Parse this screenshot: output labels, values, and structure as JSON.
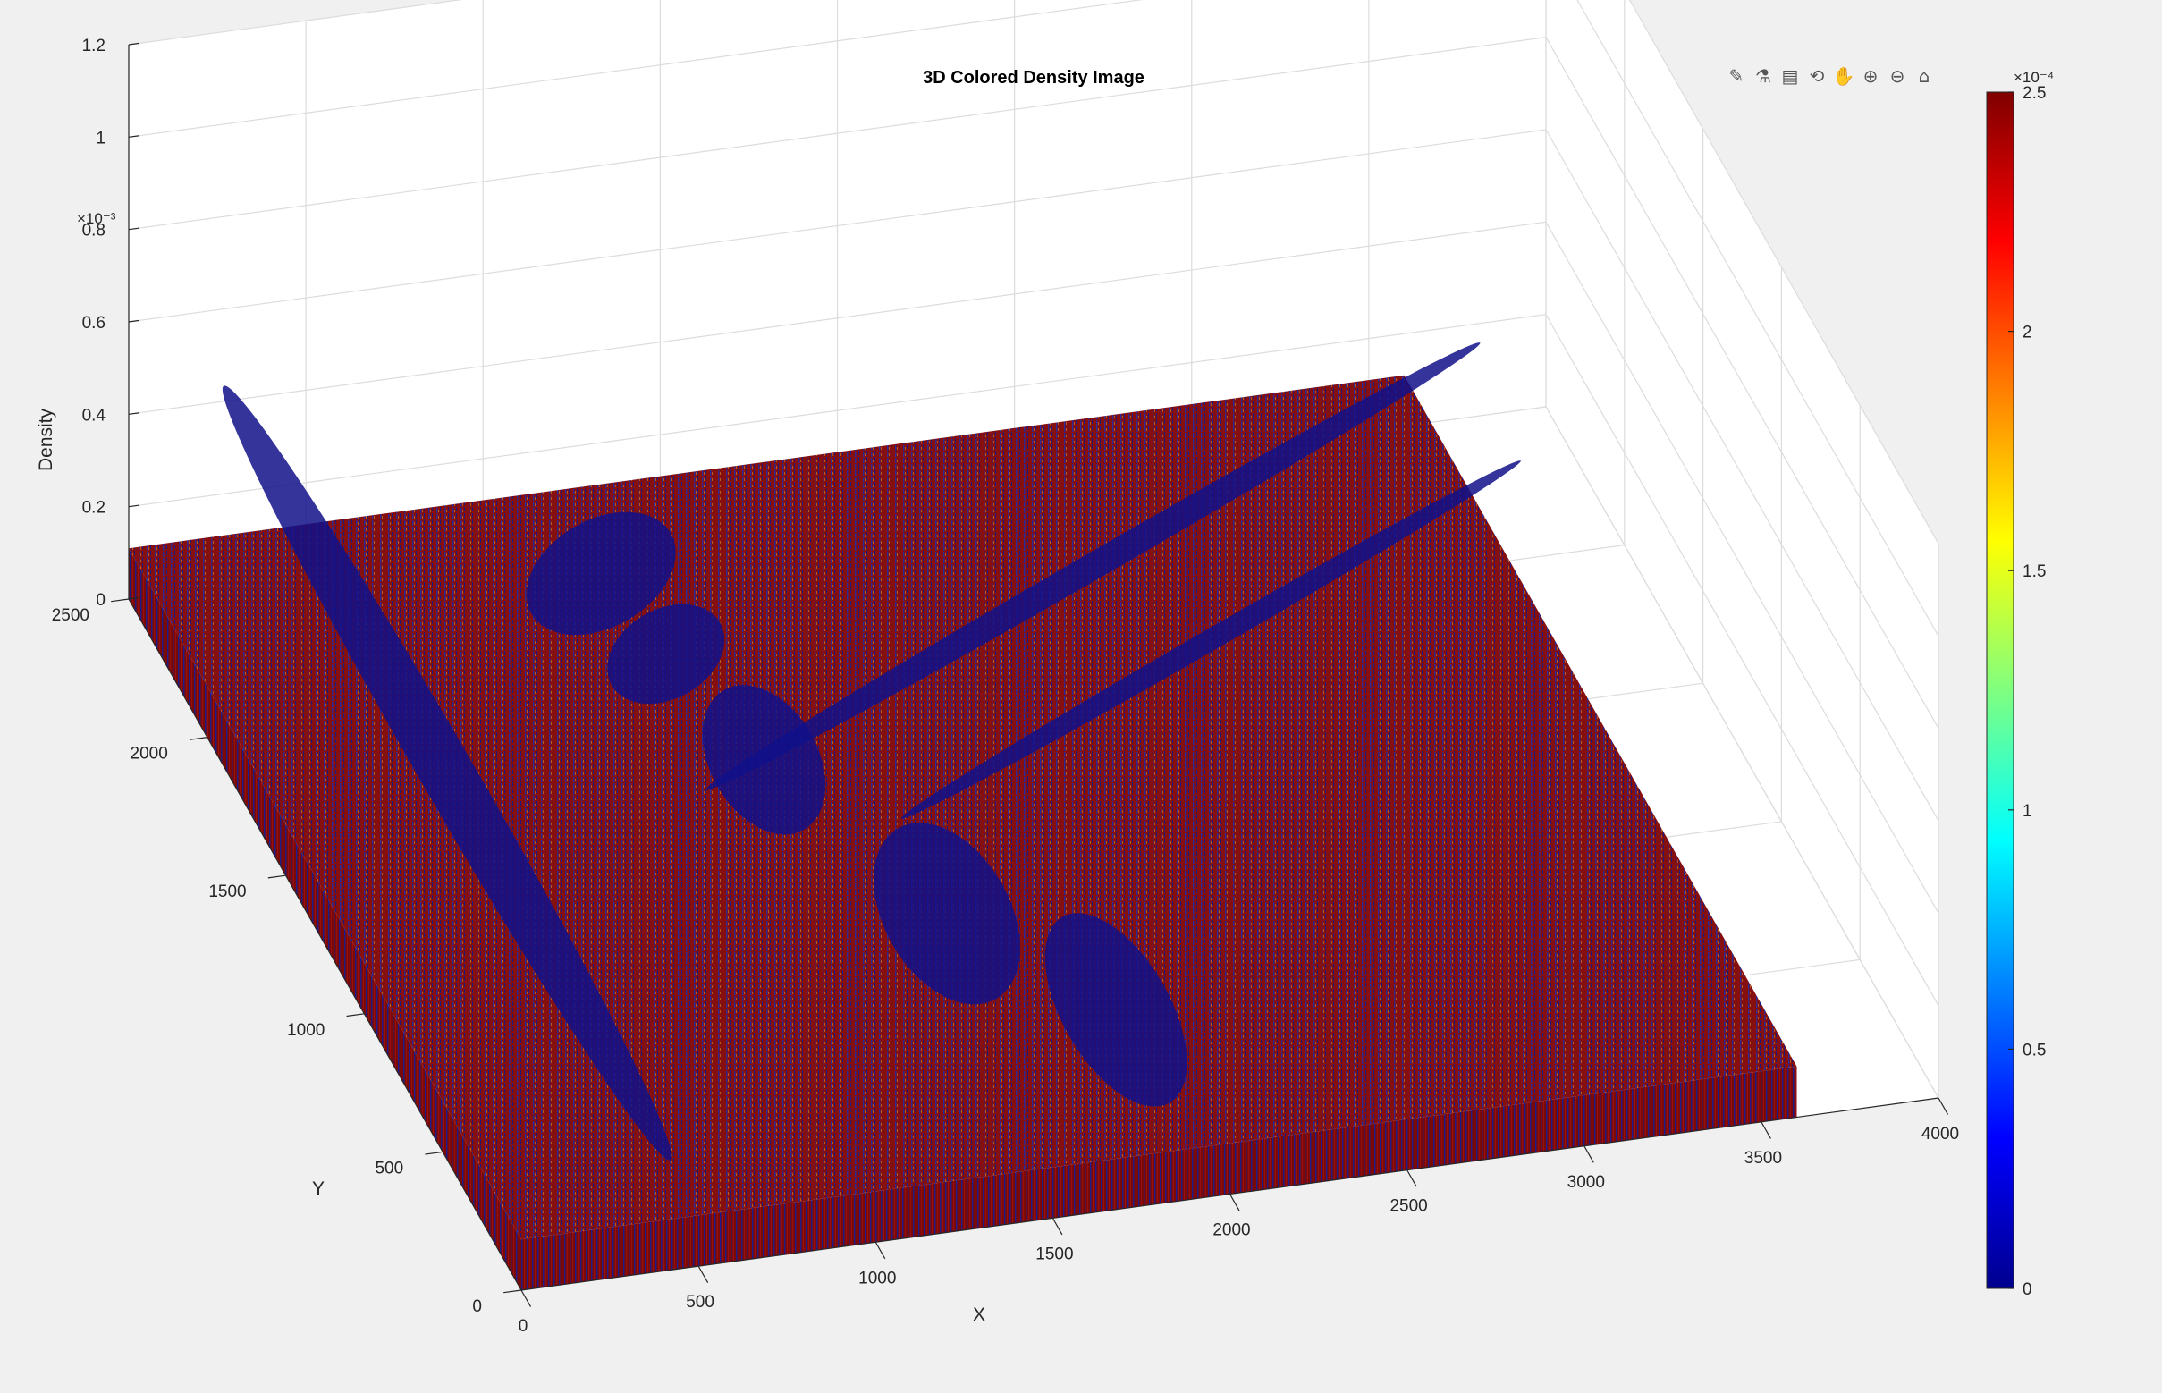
{
  "figure": {
    "title": "3D Colored Density Image"
  },
  "toolbar": [
    {
      "name": "brush-icon",
      "glyph": "✎"
    },
    {
      "name": "datatip-icon",
      "glyph": "⚗"
    },
    {
      "name": "legend-icon",
      "glyph": "▤"
    },
    {
      "name": "rotate-3d-icon",
      "glyph": "⟲"
    },
    {
      "name": "pan-icon",
      "glyph": "✋"
    },
    {
      "name": "zoom-in-icon",
      "glyph": "⊕"
    },
    {
      "name": "zoom-out-icon",
      "glyph": "⊖"
    },
    {
      "name": "home-icon",
      "glyph": "⌂"
    }
  ],
  "chart_data": {
    "type": "surface",
    "title": "3D Colored Density Image",
    "xlabel": "X",
    "ylabel": "Y",
    "zlabel": "Density",
    "xlim": [
      0,
      4000
    ],
    "ylim": [
      0,
      2500
    ],
    "zlim": [
      0,
      0.0012
    ],
    "x_ticks": [
      "0",
      "500",
      "1000",
      "1500",
      "2000",
      "2500",
      "3000",
      "3500",
      "4000"
    ],
    "y_ticks": [
      "0",
      "500",
      "1000",
      "1500",
      "2000",
      "2500"
    ],
    "z_ticks": [
      "0",
      "0.2",
      "0.4",
      "0.6",
      "0.8",
      "1",
      "1.2"
    ],
    "z_exponent": "×10⁻³",
    "surface_extent": {
      "x": [
        0,
        3600
      ],
      "y": [
        0,
        2500
      ]
    },
    "colormap": "jet",
    "colorbar": {
      "limits": [
        0,
        0.00025
      ],
      "ticks": [
        "0",
        "0.5",
        "1",
        "1.5",
        "2",
        "2.5"
      ],
      "exponent": "×10⁻⁴"
    },
    "grid": true
  }
}
